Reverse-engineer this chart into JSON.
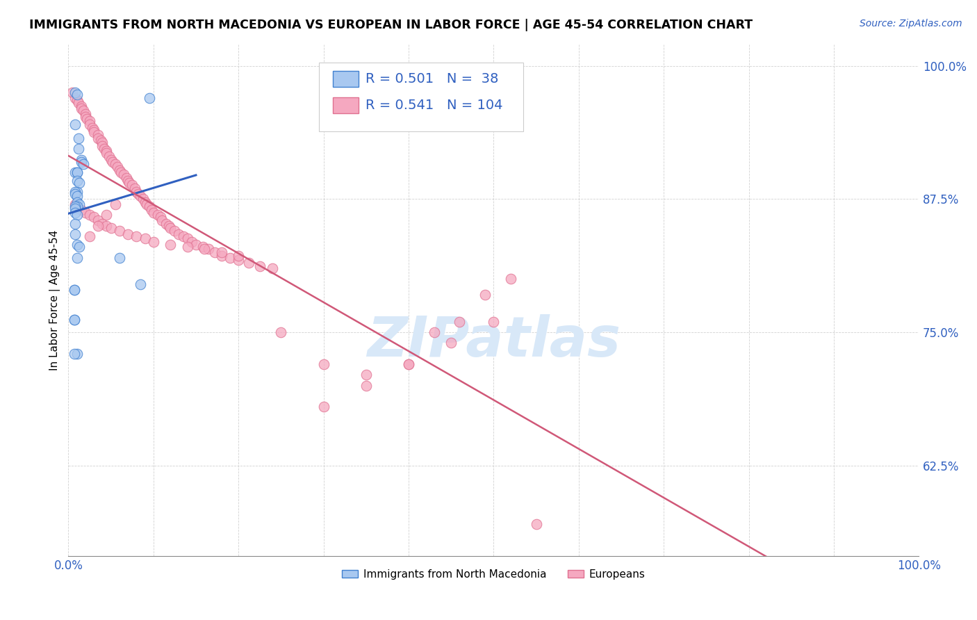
{
  "title": "IMMIGRANTS FROM NORTH MACEDONIA VS EUROPEAN IN LABOR FORCE | AGE 45-54 CORRELATION CHART",
  "source": "Source: ZipAtlas.com",
  "ylabel": "In Labor Force | Age 45-54",
  "xlim": [
    0.0,
    1.0
  ],
  "ylim": [
    0.54,
    1.02
  ],
  "yticks": [
    0.625,
    0.75,
    0.875,
    1.0
  ],
  "ytick_labels": [
    "62.5%",
    "75.0%",
    "87.5%",
    "100.0%"
  ],
  "xticks": [
    0.0,
    0.1,
    0.2,
    0.3,
    0.4,
    0.5,
    0.6,
    0.7,
    0.8,
    0.9,
    1.0
  ],
  "xtick_labels": [
    "0.0%",
    "",
    "",
    "",
    "",
    "",
    "",
    "",
    "",
    "",
    "100.0%"
  ],
  "blue_R": 0.501,
  "blue_N": 38,
  "pink_R": 0.541,
  "pink_N": 104,
  "blue_color": "#A8C8F0",
  "pink_color": "#F5A8C0",
  "blue_edge_color": "#4080D0",
  "pink_edge_color": "#E07090",
  "blue_line_color": "#3060C0",
  "pink_line_color": "#D05878",
  "background_color": "#ffffff",
  "watermark": "ZIPatlas",
  "watermark_color": "#D8E8F8",
  "legend_blue_label": "Immigrants from North Macedonia",
  "legend_pink_label": "Europeans",
  "blue_scatter_x": [
    0.008,
    0.01,
    0.095,
    0.008,
    0.012,
    0.012,
    0.015,
    0.015,
    0.018,
    0.008,
    0.01,
    0.01,
    0.01,
    0.013,
    0.01,
    0.008,
    0.008,
    0.01,
    0.01,
    0.013,
    0.01,
    0.008,
    0.008,
    0.008,
    0.01,
    0.008,
    0.008,
    0.01,
    0.013,
    0.01,
    0.007,
    0.007,
    0.01,
    0.085,
    0.06,
    0.007,
    0.007,
    0.007
  ],
  "blue_scatter_y": [
    0.975,
    0.973,
    0.97,
    0.945,
    0.932,
    0.922,
    0.912,
    0.91,
    0.908,
    0.9,
    0.9,
    0.9,
    0.892,
    0.89,
    0.882,
    0.882,
    0.88,
    0.878,
    0.872,
    0.87,
    0.868,
    0.868,
    0.866,
    0.862,
    0.86,
    0.852,
    0.842,
    0.832,
    0.83,
    0.82,
    0.79,
    0.762,
    0.73,
    0.795,
    0.82,
    0.79,
    0.762,
    0.73
  ],
  "pink_scatter_x": [
    0.005,
    0.008,
    0.01,
    0.012,
    0.015,
    0.015,
    0.018,
    0.02,
    0.02,
    0.022,
    0.025,
    0.025,
    0.028,
    0.03,
    0.03,
    0.035,
    0.035,
    0.038,
    0.04,
    0.04,
    0.042,
    0.045,
    0.045,
    0.048,
    0.05,
    0.052,
    0.055,
    0.058,
    0.06,
    0.062,
    0.065,
    0.068,
    0.07,
    0.072,
    0.075,
    0.078,
    0.08,
    0.082,
    0.085,
    0.088,
    0.09,
    0.092,
    0.095,
    0.098,
    0.1,
    0.105,
    0.108,
    0.11,
    0.115,
    0.118,
    0.12,
    0.125,
    0.13,
    0.135,
    0.14,
    0.145,
    0.15,
    0.158,
    0.165,
    0.172,
    0.18,
    0.19,
    0.2,
    0.212,
    0.225,
    0.24,
    0.008,
    0.01,
    0.015,
    0.02,
    0.025,
    0.03,
    0.035,
    0.04,
    0.045,
    0.05,
    0.06,
    0.07,
    0.08,
    0.09,
    0.1,
    0.12,
    0.14,
    0.16,
    0.18,
    0.2,
    0.25,
    0.3,
    0.35,
    0.4,
    0.43,
    0.46,
    0.49,
    0.52,
    0.3,
    0.35,
    0.4,
    0.45,
    0.5,
    0.55,
    0.025,
    0.035,
    0.045,
    0.055
  ],
  "pink_scatter_y": [
    0.975,
    0.97,
    0.968,
    0.965,
    0.962,
    0.96,
    0.958,
    0.955,
    0.952,
    0.95,
    0.948,
    0.945,
    0.942,
    0.94,
    0.938,
    0.935,
    0.932,
    0.93,
    0.928,
    0.925,
    0.922,
    0.92,
    0.918,
    0.915,
    0.912,
    0.91,
    0.908,
    0.905,
    0.902,
    0.9,
    0.898,
    0.895,
    0.892,
    0.89,
    0.888,
    0.885,
    0.882,
    0.88,
    0.878,
    0.875,
    0.872,
    0.87,
    0.868,
    0.865,
    0.862,
    0.86,
    0.858,
    0.855,
    0.852,
    0.85,
    0.848,
    0.845,
    0.842,
    0.84,
    0.838,
    0.835,
    0.832,
    0.83,
    0.828,
    0.825,
    0.822,
    0.82,
    0.818,
    0.815,
    0.812,
    0.81,
    0.87,
    0.868,
    0.865,
    0.862,
    0.86,
    0.858,
    0.855,
    0.852,
    0.85,
    0.848,
    0.845,
    0.842,
    0.84,
    0.838,
    0.835,
    0.832,
    0.83,
    0.828,
    0.825,
    0.822,
    0.75,
    0.72,
    0.71,
    0.72,
    0.75,
    0.76,
    0.785,
    0.8,
    0.68,
    0.7,
    0.72,
    0.74,
    0.76,
    0.57,
    0.84,
    0.85,
    0.86,
    0.87
  ]
}
